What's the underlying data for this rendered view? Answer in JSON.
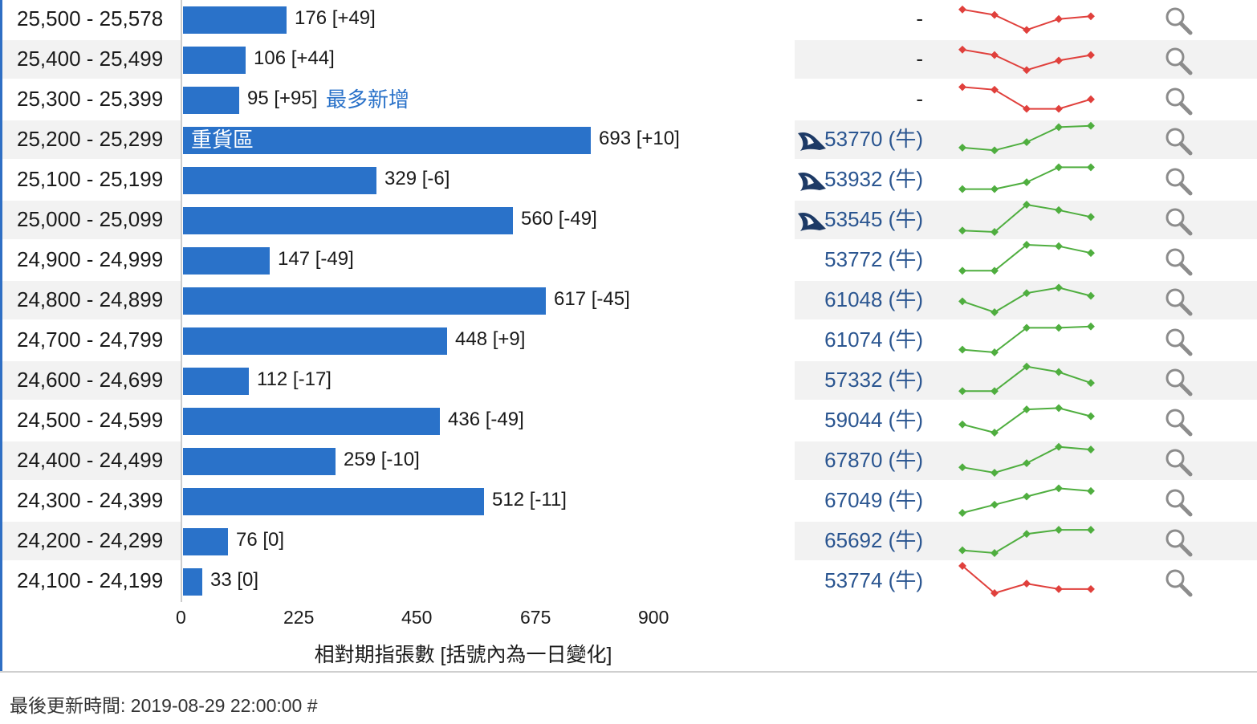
{
  "chart_data": {
    "type": "bar",
    "orientation": "horizontal",
    "xlabel": "相對期指張數 [括號內為一日變化]",
    "xlim": [
      0,
      900
    ],
    "xticks": [
      0,
      225,
      450,
      675,
      900
    ],
    "grid": false,
    "categories": [
      "25,500 - 25,578",
      "25,400 - 25,499",
      "25,300 - 25,399",
      "25,200 - 25,299",
      "25,100 - 25,199",
      "25,000 - 25,099",
      "24,900 - 24,999",
      "24,800 - 24,899",
      "24,700 - 24,799",
      "24,600 - 24,699",
      "24,500 - 24,599",
      "24,400 - 24,499",
      "24,300 - 24,399",
      "24,200 - 24,299",
      "24,100 - 24,199"
    ],
    "values": [
      176,
      106,
      95,
      693,
      329,
      560,
      147,
      617,
      448,
      112,
      436,
      259,
      512,
      76,
      33
    ],
    "labels": [
      "176 [+49]",
      "106 [+44]",
      "95 [+95]",
      "693 [+10]",
      "329 [-6]",
      "560 [-49]",
      "147 [-49]",
      "617 [-45]",
      "448 [+9]",
      "112 [-17]",
      "436 [-49]",
      "259 [-10]",
      "512 [-11]",
      "76 [0]",
      "33 [0]"
    ],
    "annotations": [
      {
        "row": 2,
        "text": "最多新增",
        "placement": "after-label"
      },
      {
        "row": 3,
        "text": "重貨區",
        "placement": "inside-bar"
      }
    ],
    "bar_color": "#2a72c9"
  },
  "rows": [
    {
      "range": "25,500 - 25,578",
      "warrant": "-",
      "hot": false,
      "trend": "down",
      "spark": [
        0.8,
        0.6,
        0.05,
        0.45,
        0.55
      ]
    },
    {
      "range": "25,400 - 25,499",
      "warrant": "-",
      "hot": false,
      "trend": "down",
      "spark": [
        0.8,
        0.6,
        0.05,
        0.4,
        0.6
      ]
    },
    {
      "range": "25,300 - 25,399",
      "warrant": "-",
      "hot": false,
      "trend": "down",
      "spark": [
        0.9,
        0.8,
        0.1,
        0.1,
        0.45
      ]
    },
    {
      "range": "25,200 - 25,299",
      "warrant": "53770 (牛)",
      "hot": true,
      "trend": "up",
      "spark": [
        0.15,
        0.05,
        0.35,
        0.9,
        0.95
      ]
    },
    {
      "range": "25,100 - 25,199",
      "warrant": "53932 (牛)",
      "hot": true,
      "trend": "up",
      "spark": [
        0.1,
        0.1,
        0.35,
        0.9,
        0.9
      ]
    },
    {
      "range": "25,000 - 25,099",
      "warrant": "53545 (牛)",
      "hot": true,
      "trend": "up",
      "spark": [
        0.05,
        0.0,
        1.0,
        0.8,
        0.55
      ]
    },
    {
      "range": "24,900 - 24,999",
      "warrant": "53772 (牛)",
      "hot": false,
      "trend": "up",
      "spark": [
        0.05,
        0.05,
        1.0,
        0.95,
        0.7
      ]
    },
    {
      "range": "24,800 - 24,899",
      "warrant": "61048 (牛)",
      "hot": false,
      "trend": "up",
      "spark": [
        0.4,
        0.0,
        0.7,
        0.9,
        0.6
      ]
    },
    {
      "range": "24,700 - 24,799",
      "warrant": "61074 (牛)",
      "hot": false,
      "trend": "up",
      "spark": [
        0.1,
        0.0,
        0.9,
        0.9,
        0.95
      ]
    },
    {
      "range": "24,600 - 24,699",
      "warrant": "57332 (牛)",
      "hot": false,
      "trend": "up",
      "spark": [
        0.05,
        0.05,
        0.95,
        0.75,
        0.35
      ]
    },
    {
      "range": "24,500 - 24,599",
      "warrant": "59044 (牛)",
      "hot": false,
      "trend": "up",
      "spark": [
        0.3,
        0.0,
        0.85,
        0.9,
        0.6
      ]
    },
    {
      "range": "24,400 - 24,499",
      "warrant": "67870 (牛)",
      "hot": false,
      "trend": "up",
      "spark": [
        0.2,
        0.0,
        0.35,
        0.95,
        0.85
      ]
    },
    {
      "range": "24,300 - 24,399",
      "warrant": "67049 (牛)",
      "hot": false,
      "trend": "up",
      "spark": [
        0.0,
        0.3,
        0.6,
        0.9,
        0.8
      ]
    },
    {
      "range": "24,200 - 24,299",
      "warrant": "65692 (牛)",
      "hot": false,
      "trend": "up",
      "spark": [
        0.1,
        0.0,
        0.7,
        0.85,
        0.85
      ]
    },
    {
      "range": "24,100 - 24,199",
      "warrant": "53774 (牛)",
      "hot": false,
      "trend": "down",
      "spark": [
        1.0,
        0.0,
        0.35,
        0.15,
        0.15
      ]
    }
  ],
  "colors": {
    "up": "#4fae3f",
    "down": "#e0403c",
    "warrant": "#2a5590",
    "alt_row": "#f2f2f2"
  },
  "icons": {
    "hot": "shark-fin-icon",
    "zoom": "magnifier-icon"
  },
  "footer": {
    "updated": "最後更新時間: 2019-08-29 22:00:00 #"
  }
}
